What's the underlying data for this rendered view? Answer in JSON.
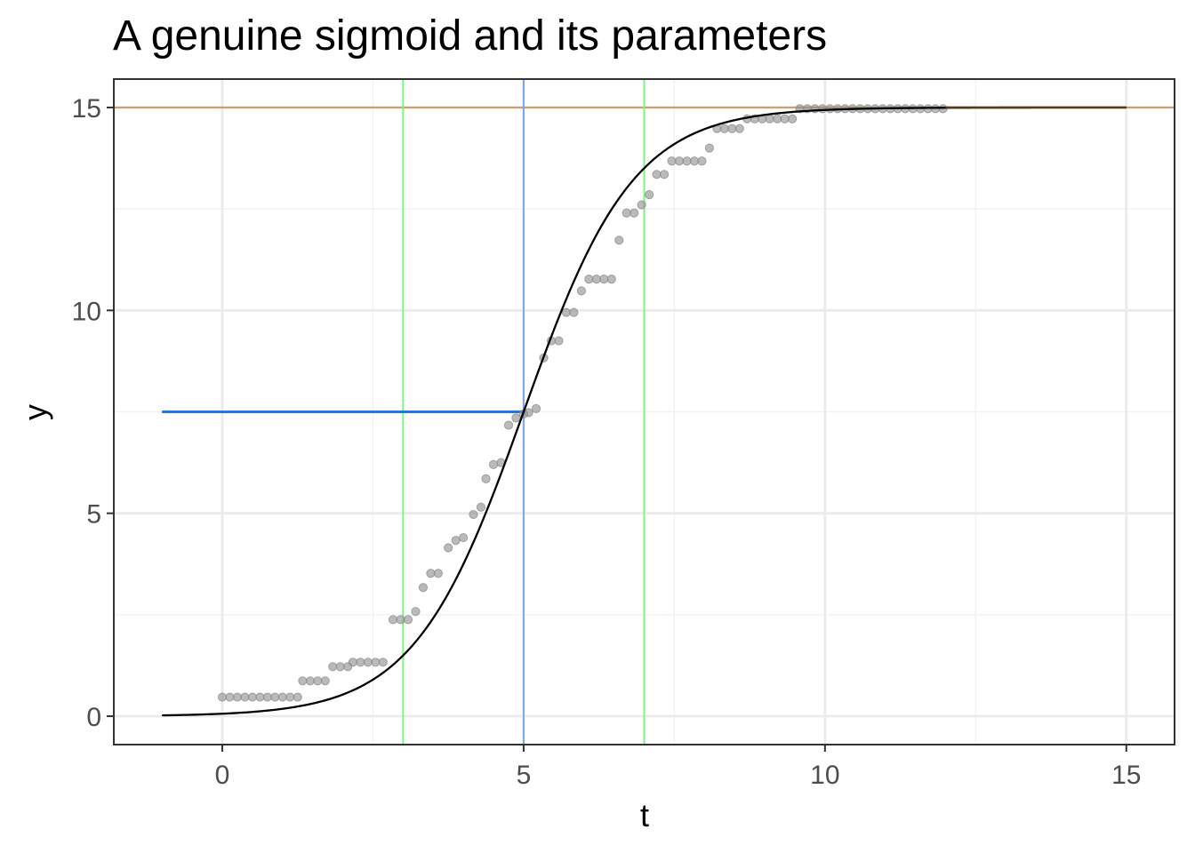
{
  "chart_data": {
    "type": "scatter",
    "title": "A genuine sigmoid and its parameters",
    "xlabel": "t",
    "ylabel": "y",
    "xlim": [
      -1.8,
      15.8
    ],
    "ylim": [
      -0.7,
      15.7
    ],
    "x_ticks": [
      0,
      5,
      10,
      15
    ],
    "y_ticks": [
      0,
      5,
      10,
      15
    ],
    "grid": true,
    "legend": "none",
    "colors": {
      "points": "#8c8c8c",
      "curve": "#000000",
      "asymptote": "#c9a073",
      "asymptote_overlap": "#5a3a14",
      "midpoint_vline": "#7aa7f0",
      "midpoint_hline": "#1f78e6",
      "window_lines": "#7ef57e",
      "grid_major": "#ebebeb",
      "grid_minor": "#f2f2f2",
      "panel_border": "#333333"
    },
    "parameters": {
      "asymptote": 15,
      "midpoint_t": 5,
      "midpoint_y": 7.5,
      "growth_window": [
        3,
        7
      ]
    },
    "curve": {
      "form": "logistic",
      "L": 15,
      "k": 1.1,
      "t0": 5,
      "x_range": [
        -1,
        15
      ]
    },
    "asymptote_dark_segment": [
      12,
      15
    ],
    "midpoint_hline_range": [
      -1,
      5
    ],
    "points": [
      [
        0,
        0.47
      ],
      [
        0.125,
        0.47
      ],
      [
        0.25,
        0.47
      ],
      [
        0.375,
        0.47
      ],
      [
        0.5,
        0.47
      ],
      [
        0.625,
        0.47
      ],
      [
        0.75,
        0.47
      ],
      [
        0.875,
        0.47
      ],
      [
        1.0,
        0.47
      ],
      [
        1.125,
        0.47
      ],
      [
        1.25,
        0.47
      ],
      [
        1.333,
        0.87
      ],
      [
        1.458,
        0.87
      ],
      [
        1.583,
        0.87
      ],
      [
        1.708,
        0.87
      ],
      [
        1.833,
        1.22
      ],
      [
        1.958,
        1.22
      ],
      [
        2.083,
        1.22
      ],
      [
        2.167,
        1.33
      ],
      [
        2.292,
        1.33
      ],
      [
        2.417,
        1.33
      ],
      [
        2.542,
        1.33
      ],
      [
        2.667,
        1.33
      ],
      [
        2.833,
        2.38
      ],
      [
        2.958,
        2.38
      ],
      [
        3.083,
        2.38
      ],
      [
        3.208,
        2.58
      ],
      [
        3.333,
        3.17
      ],
      [
        3.458,
        3.52
      ],
      [
        3.583,
        3.52
      ],
      [
        3.75,
        4.15
      ],
      [
        3.875,
        4.33
      ],
      [
        4.0,
        4.4
      ],
      [
        4.167,
        4.97
      ],
      [
        4.292,
        5.15
      ],
      [
        4.375,
        5.85
      ],
      [
        4.5,
        6.2
      ],
      [
        4.625,
        6.25
      ],
      [
        4.75,
        7.17
      ],
      [
        4.875,
        7.35
      ],
      [
        5.0,
        7.45
      ],
      [
        5.083,
        7.48
      ],
      [
        5.208,
        7.58
      ],
      [
        5.333,
        8.83
      ],
      [
        5.458,
        9.25
      ],
      [
        5.583,
        9.25
      ],
      [
        5.708,
        9.95
      ],
      [
        5.833,
        9.95
      ],
      [
        5.958,
        10.48
      ],
      [
        6.083,
        10.77
      ],
      [
        6.208,
        10.77
      ],
      [
        6.333,
        10.77
      ],
      [
        6.458,
        10.77
      ],
      [
        6.583,
        11.73
      ],
      [
        6.708,
        12.4
      ],
      [
        6.833,
        12.4
      ],
      [
        6.958,
        12.6
      ],
      [
        7.083,
        12.85
      ],
      [
        7.208,
        13.35
      ],
      [
        7.333,
        13.35
      ],
      [
        7.458,
        13.68
      ],
      [
        7.583,
        13.68
      ],
      [
        7.708,
        13.68
      ],
      [
        7.833,
        13.68
      ],
      [
        7.958,
        13.68
      ],
      [
        8.083,
        14.0
      ],
      [
        8.208,
        14.48
      ],
      [
        8.333,
        14.48
      ],
      [
        8.458,
        14.48
      ],
      [
        8.583,
        14.48
      ],
      [
        8.708,
        14.72
      ],
      [
        8.833,
        14.72
      ],
      [
        8.958,
        14.72
      ],
      [
        9.083,
        14.72
      ],
      [
        9.208,
        14.72
      ],
      [
        9.333,
        14.72
      ],
      [
        9.458,
        14.72
      ],
      [
        9.583,
        14.97
      ],
      [
        9.708,
        14.97
      ],
      [
        9.833,
        14.97
      ],
      [
        9.958,
        14.97
      ],
      [
        10.083,
        14.97
      ],
      [
        10.208,
        14.97
      ],
      [
        10.333,
        14.97
      ],
      [
        10.458,
        14.97
      ],
      [
        10.583,
        14.97
      ],
      [
        10.708,
        14.97
      ],
      [
        10.833,
        14.97
      ],
      [
        10.958,
        14.97
      ],
      [
        11.083,
        14.97
      ],
      [
        11.208,
        14.97
      ],
      [
        11.333,
        14.97
      ],
      [
        11.458,
        14.97
      ],
      [
        11.583,
        14.97
      ],
      [
        11.708,
        14.97
      ],
      [
        11.833,
        14.97
      ],
      [
        11.958,
        14.97
      ]
    ]
  }
}
